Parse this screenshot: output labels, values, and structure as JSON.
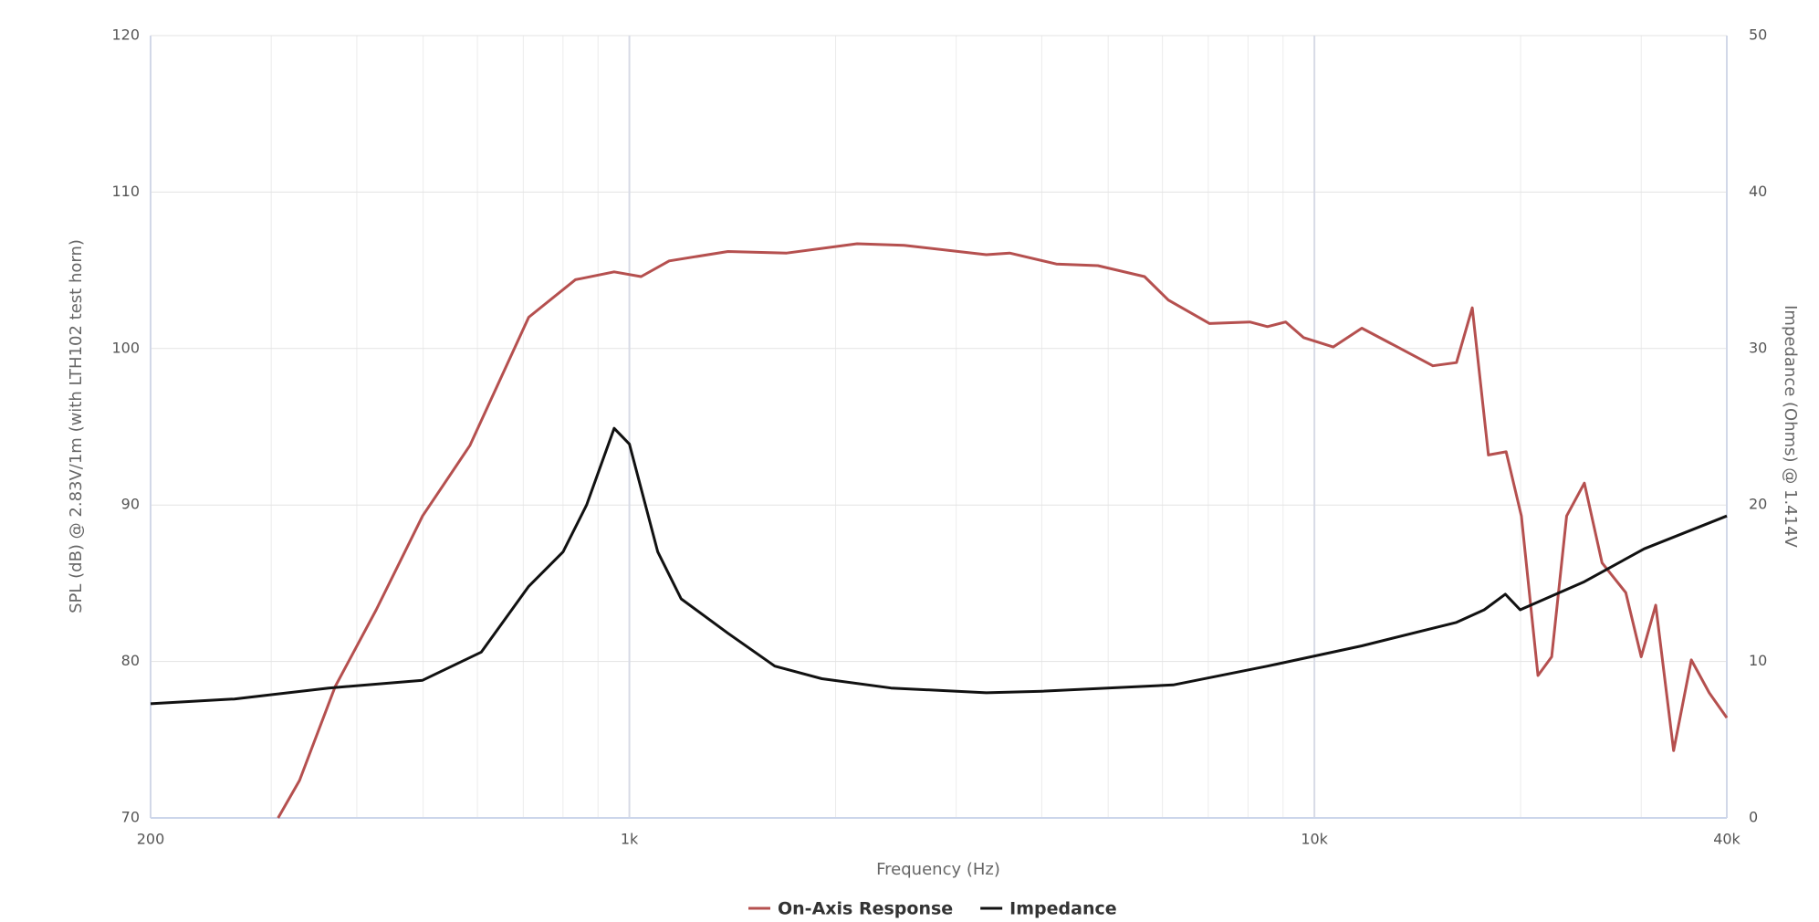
{
  "chart_data": {
    "type": "line",
    "x_label": "Frequency (Hz)",
    "y_label": "SPL (dB) @ 2.83V/1m (with LTH102 test horn)",
    "y2_label": "Impedance (Ohms) @ 1.414V",
    "x_scale": "log",
    "xlim": [
      200,
      40000
    ],
    "xticks": [
      200,
      {
        "value": 1000,
        "label": "1k"
      },
      {
        "value": 10000,
        "label": "10k"
      },
      {
        "value": 40000,
        "label": "40k"
      }
    ],
    "ylim": [
      70,
      120
    ],
    "yticks": [
      70,
      80,
      90,
      100,
      110,
      120
    ],
    "y2lim": [
      0,
      50
    ],
    "y2ticks": [
      0,
      10,
      20,
      30,
      40,
      50
    ],
    "grid": true,
    "legend": "bottom",
    "series": [
      {
        "name": "On-Axis Response",
        "color": "#b5504f",
        "x": [
          307,
          330,
          372,
          427,
          499,
          585,
          713,
          834,
          950,
          1040,
          1143,
          1393,
          1697,
          2150,
          2518,
          3320,
          3590,
          4200,
          4830,
          5650,
          6120,
          7030,
          8050,
          8540,
          9080,
          9640,
          10650,
          11730,
          13220,
          14890,
          16120,
          17000,
          17950,
          19050,
          20050,
          21200,
          22200,
          23350,
          24780,
          26300,
          28480,
          30000,
          31500,
          33450,
          35500,
          37700,
          40000
        ],
        "values": [
          70,
          72.4,
          78.4,
          83.3,
          89.3,
          93.8,
          102,
          104.4,
          104.9,
          104.6,
          105.6,
          106.2,
          106.1,
          106.7,
          106.6,
          106,
          106.1,
          105.4,
          105.3,
          104.6,
          103.1,
          101.6,
          101.7,
          101.4,
          101.7,
          100.7,
          100.1,
          101.3,
          100.1,
          98.9,
          99.1,
          102.6,
          93.2,
          93.4,
          89.3,
          79.1,
          80.3,
          89.3,
          91.4,
          86.3,
          84.4,
          80.3,
          83.6,
          74.3,
          80.1,
          78,
          76.4
        ]
      },
      {
        "name": "Impedance",
        "color": "#111111",
        "axis": "y2",
        "x": [
          200,
          265,
          364,
          499,
          608,
          713,
          800,
          866,
          950,
          1000,
          1100,
          1190,
          1393,
          1630,
          1910,
          2410,
          3320,
          4000,
          6220,
          8540,
          11730,
          16120,
          17700,
          19000,
          19970,
          24780,
          30300,
          40000
        ],
        "values": [
          7.3,
          7.6,
          8.3,
          8.8,
          10.6,
          14.8,
          17,
          20,
          24.9,
          23.9,
          17,
          14,
          11.8,
          9.7,
          8.9,
          8.3,
          8,
          8.1,
          8.5,
          9.7,
          11,
          12.5,
          13.3,
          14.3,
          13.3,
          15.1,
          17.2,
          19.3
        ]
      }
    ]
  }
}
